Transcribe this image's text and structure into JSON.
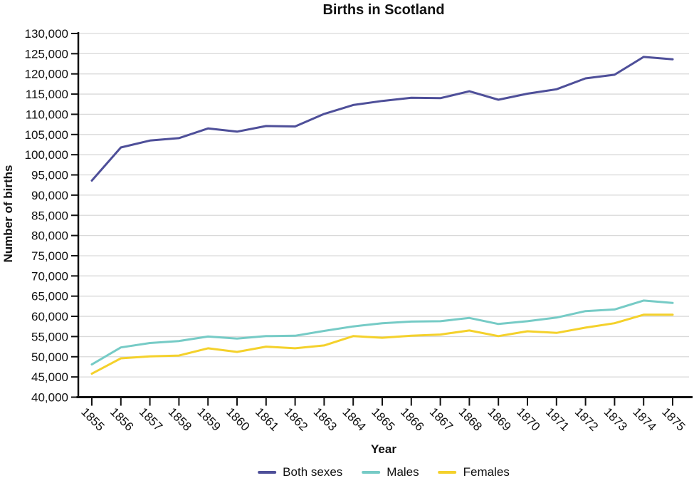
{
  "chart_data": {
    "type": "line",
    "title": "Births in Scotland",
    "xlabel": "Year",
    "ylabel": "Number of births",
    "x": [
      1855,
      1856,
      1857,
      1858,
      1859,
      1860,
      1861,
      1862,
      1863,
      1864,
      1865,
      1866,
      1867,
      1868,
      1869,
      1870,
      1871,
      1872,
      1873,
      1874,
      1875
    ],
    "series": [
      {
        "name": "Both sexes",
        "color": "#4e4f99",
        "values": [
          93600,
          101800,
          103500,
          104100,
          106500,
          105700,
          107100,
          107000,
          110100,
          112300,
          113300,
          114100,
          114000,
          115700,
          113600,
          115100,
          116200,
          118900,
          119800,
          124200,
          123600
        ]
      },
      {
        "name": "Males",
        "color": "#76cbc6",
        "values": [
          48100,
          52300,
          53400,
          53900,
          55000,
          54500,
          55100,
          55200,
          56400,
          57500,
          58300,
          58700,
          58800,
          59600,
          58100,
          58800,
          59700,
          61300,
          61700,
          63900,
          63300
        ]
      },
      {
        "name": "Females",
        "color": "#f4d12b",
        "values": [
          45800,
          49600,
          50100,
          50300,
          52100,
          51200,
          52500,
          52100,
          52800,
          55100,
          54700,
          55200,
          55500,
          56500,
          55100,
          56300,
          55900,
          57200,
          58300,
          60400,
          60400
        ]
      }
    ],
    "ylim": [
      40000,
      130000
    ],
    "ytick_step": 5000,
    "yticks": [
      40000,
      45000,
      50000,
      55000,
      60000,
      65000,
      70000,
      75000,
      80000,
      85000,
      90000,
      95000,
      100000,
      105000,
      110000,
      115000,
      120000,
      125000,
      130000
    ],
    "grid": "horizontal",
    "legend_position": "bottom",
    "axis_color": "#111111",
    "gridline_color": "#d9d9d9"
  }
}
